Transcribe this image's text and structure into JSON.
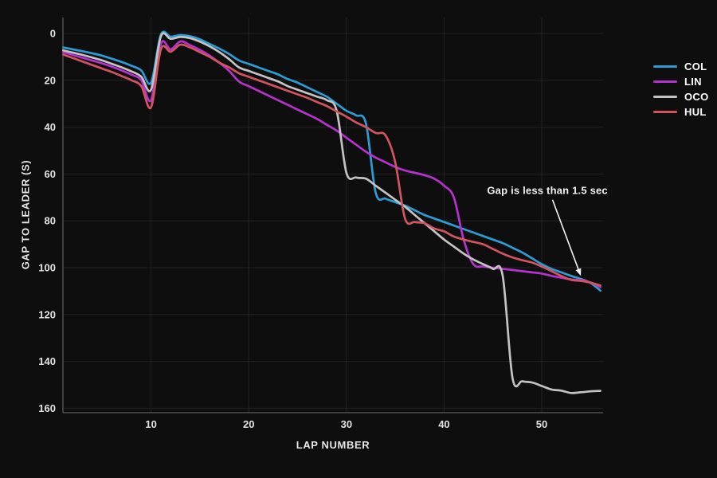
{
  "colors": {
    "background": "#0e0e0e",
    "grid": "#232323",
    "axis_spine": "#6f6f6f",
    "tick_text": "#e3e3e3",
    "annotation_text": "#f2f2f2",
    "annotation_arrow": "#f2f2f2"
  },
  "legend": {
    "items": [
      {
        "label": "COL",
        "color": "#2b9cd4"
      },
      {
        "label": "LIN",
        "color": "#b632cd"
      },
      {
        "label": "OCO",
        "color": "#c3c3c3"
      },
      {
        "label": "HUL",
        "color": "#d2545f"
      }
    ]
  },
  "chart_data": {
    "type": "line",
    "title": "",
    "xlabel": "LAP NUMBER",
    "ylabel": "GAP TO LEADER (S)",
    "x_ticks": [
      10,
      20,
      30,
      40,
      50
    ],
    "y_ticks": [
      0,
      20,
      40,
      60,
      80,
      100,
      120,
      140,
      160
    ],
    "y_axis_inverted": true,
    "x_range": [
      1,
      56
    ],
    "y_range": [
      -7,
      162
    ],
    "grid": true,
    "legend_position": "right",
    "laps": [
      1,
      2,
      3,
      4,
      5,
      6,
      7,
      8,
      9,
      10,
      11,
      12,
      13,
      14,
      15,
      16,
      17,
      18,
      19,
      20,
      21,
      22,
      23,
      24,
      25,
      26,
      27,
      28,
      29,
      30,
      31,
      32,
      33,
      34,
      35,
      36,
      37,
      38,
      39,
      40,
      41,
      42,
      43,
      44,
      45,
      46,
      47,
      48,
      49,
      50,
      51,
      52,
      53,
      54,
      55,
      56
    ],
    "series": [
      {
        "name": "COL",
        "color": "#2b9cd4",
        "values": [
          6.0,
          6.8,
          7.6,
          8.5,
          9.5,
          10.8,
          12.2,
          13.8,
          15.8,
          21.0,
          0.5,
          1.4,
          0.7,
          1.2,
          2.5,
          4.5,
          6.5,
          8.8,
          11.5,
          13.0,
          14.5,
          16.0,
          17.5,
          19.5,
          21.0,
          23.0,
          25.0,
          27.0,
          30.0,
          33.0,
          35.0,
          38.5,
          68.0,
          70.5,
          72.0,
          73.5,
          75.5,
          77.5,
          79.0,
          80.5,
          82.0,
          83.5,
          85.0,
          86.5,
          88.0,
          89.5,
          91.5,
          93.5,
          96.0,
          98.5,
          100.5,
          102.0,
          103.5,
          104.8,
          106.5,
          109.8
        ]
      },
      {
        "name": "LIN",
        "color": "#b632cd",
        "values": [
          8.0,
          9.2,
          10.4,
          11.6,
          12.8,
          14.2,
          15.8,
          17.6,
          20.0,
          28.5,
          4.4,
          6.8,
          3.4,
          5.0,
          7.0,
          9.5,
          12.5,
          16.0,
          20.5,
          22.5,
          24.5,
          26.5,
          28.5,
          30.5,
          32.5,
          34.5,
          36.5,
          39.0,
          41.5,
          44.5,
          47.5,
          50.5,
          53.0,
          55.0,
          57.0,
          58.5,
          59.5,
          60.5,
          62.0,
          65.0,
          70.0,
          88.0,
          98.5,
          99.5,
          100.0,
          100.5,
          101.0,
          101.5,
          102.0,
          102.5,
          103.5,
          104.3,
          105.0,
          105.3,
          106.3,
          108.3
        ]
      },
      {
        "name": "OCO",
        "color": "#c3c3c3",
        "values": [
          7.2,
          8.2,
          9.2,
          10.3,
          11.5,
          13.0,
          14.5,
          16.2,
          18.5,
          24.0,
          1.3,
          2.3,
          1.5,
          2.0,
          3.5,
          5.5,
          8.0,
          11.0,
          14.5,
          16.0,
          17.5,
          19.0,
          20.5,
          22.5,
          24.0,
          25.5,
          27.0,
          28.5,
          33.0,
          59.5,
          61.5,
          62.0,
          65.0,
          68.0,
          71.0,
          74.0,
          77.5,
          81.0,
          84.5,
          88.0,
          91.0,
          94.0,
          96.5,
          98.5,
          100.5,
          103.5,
          147.0,
          148.5,
          149.0,
          150.5,
          152.0,
          152.5,
          153.5,
          153.2,
          152.8,
          152.6
        ]
      },
      {
        "name": "HUL",
        "color": "#d2545f",
        "values": [
          9.0,
          10.5,
          12.0,
          13.5,
          15.0,
          16.5,
          18.2,
          20.0,
          22.5,
          31.5,
          6.8,
          7.8,
          4.8,
          6.0,
          8.0,
          10.0,
          12.5,
          14.5,
          17.0,
          18.5,
          20.0,
          21.5,
          23.0,
          24.5,
          26.0,
          27.5,
          29.3,
          31.0,
          33.3,
          35.5,
          38.0,
          40.0,
          42.5,
          43.5,
          55.0,
          79.0,
          80.5,
          81.0,
          83.3,
          84.5,
          86.7,
          88.0,
          89.0,
          90.0,
          92.0,
          94.0,
          95.6,
          96.8,
          97.8,
          99.5,
          101.5,
          103.5,
          105.2,
          105.6,
          106.4,
          107.6
        ]
      }
    ],
    "annotation": {
      "text": "Gap is less than 1.5 sec",
      "text_pos": {
        "lap": 44.4,
        "gap": 67.0
      },
      "arrow_start": {
        "lap": 51.1,
        "gap": 71.0
      },
      "arrow_tip": {
        "lap": 54.0,
        "gap": 103.5
      }
    }
  }
}
